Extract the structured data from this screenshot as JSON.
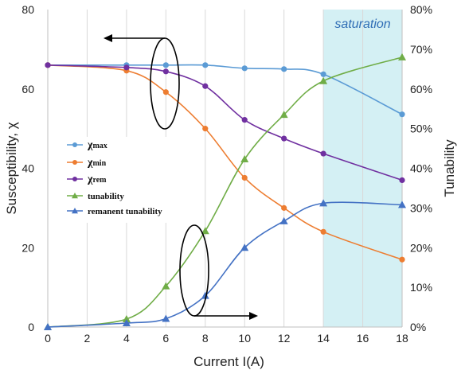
{
  "chart_data": {
    "type": "line",
    "xlabel": "Current I(A)",
    "ylabel_left": "Susceptibility, χ",
    "ylabel_right": "Tunability",
    "xlim": [
      0,
      18
    ],
    "ylim_left": [
      0,
      80
    ],
    "ylim_right": [
      0,
      0.8
    ],
    "x_ticks": [
      "0",
      "2",
      "4",
      "6",
      "8",
      "10",
      "12",
      "14",
      "16",
      "18"
    ],
    "y_left_ticks": [
      "0",
      "20",
      "40",
      "60",
      "80"
    ],
    "y_right_ticks": [
      "0%",
      "10%",
      "20%",
      "30%",
      "40%",
      "50%",
      "60%",
      "70%",
      "80%"
    ],
    "grid": "vertical",
    "legend_position": "left-center",
    "shaded_region": {
      "x_range": [
        14,
        18
      ],
      "label": "saturation",
      "color": "#d4f0f4"
    },
    "colors": {
      "chi_max": "#5b9bd5",
      "chi_min": "#ed7d31",
      "chi_rem": "#7030a0",
      "tunability": "#70ad47",
      "remanent_tunability": "#4472c4"
    },
    "series": [
      {
        "key": "chi_max",
        "name": "χmax",
        "axis": "left",
        "marker": "circle",
        "x": [
          0,
          4,
          6,
          8,
          10,
          12,
          14,
          18
        ],
        "y": [
          66,
          66,
          66,
          66,
          65.2,
          65,
          63.7,
          53.6
        ]
      },
      {
        "key": "chi_min",
        "name": "χmin",
        "axis": "left",
        "marker": "circle",
        "x": [
          0,
          4,
          6,
          8,
          10,
          12,
          14,
          18
        ],
        "y": [
          66,
          64.6,
          59.2,
          50,
          37.6,
          30,
          24,
          17
        ]
      },
      {
        "key": "chi_rem",
        "name": "χrem",
        "axis": "left",
        "marker": "circle",
        "x": [
          0,
          4,
          6,
          8,
          10,
          12,
          14,
          18
        ],
        "y": [
          66,
          65.4,
          64.4,
          60.7,
          52.2,
          47.5,
          43.7,
          37
        ]
      },
      {
        "key": "tunability",
        "name": "tunability",
        "axis": "right",
        "marker": "triangle",
        "x": [
          0,
          4,
          6,
          8,
          10,
          12,
          14,
          18
        ],
        "y": [
          0,
          0.02,
          0.103,
          0.242,
          0.423,
          0.535,
          0.62,
          0.68
        ]
      },
      {
        "key": "remanent_tunability",
        "name": "remanent tunability",
        "axis": "right",
        "marker": "triangle",
        "x": [
          0,
          4,
          6,
          8,
          10,
          12,
          14,
          18
        ],
        "y": [
          0,
          0.01,
          0.021,
          0.079,
          0.2,
          0.267,
          0.312,
          0.308
        ]
      }
    ],
    "annotations": [
      {
        "type": "ellipse-arrow",
        "target_axis": "left",
        "direction": "left"
      },
      {
        "type": "ellipse-arrow",
        "target_axis": "right",
        "direction": "right"
      }
    ]
  }
}
